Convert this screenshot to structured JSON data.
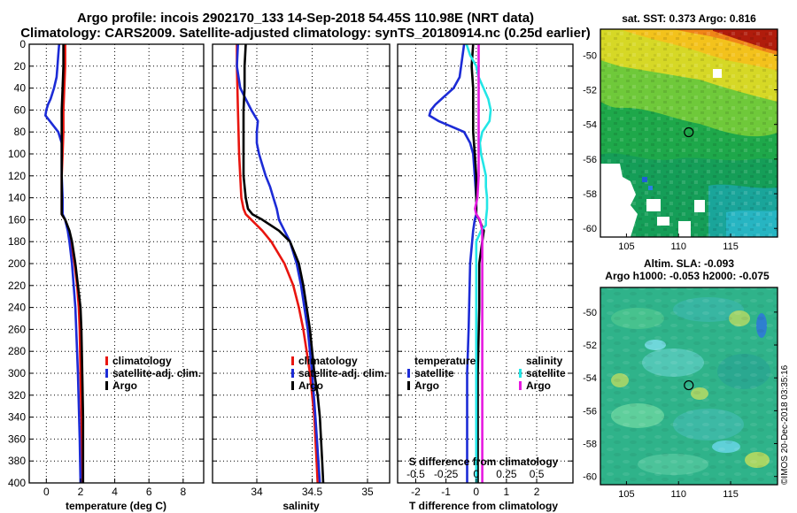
{
  "header": {
    "line1": "Argo profile: incois 2902170_133 14-Sep-2018 54.45S 110.98E (NRT data)",
    "line2": "Climatology: CARS2009. Satellite-adjusted climatology: synTS_20180914.nc (0.25d earlier)"
  },
  "depth_axis": {
    "ticks": [
      0,
      20,
      40,
      60,
      80,
      100,
      120,
      140,
      160,
      180,
      200,
      220,
      240,
      260,
      280,
      300,
      320,
      340,
      360,
      380,
      400
    ],
    "range": [
      0,
      400
    ]
  },
  "colors": {
    "climatology": "#e8150f",
    "satellite": "#1c2bd6",
    "argo": "#000000",
    "sat_salinity": "#22e6e6",
    "argo_salinity": "#e619e0"
  },
  "chart_data": [
    {
      "type": "line",
      "name": "temperature",
      "xlabel": "temperature (deg C)",
      "ylabel": "depth",
      "xlim": [
        -1,
        9.2
      ],
      "ylim": [
        400,
        0
      ],
      "xticks": [
        0,
        2,
        4,
        6,
        8
      ],
      "grid": true,
      "legend_position": "bottom-right",
      "legend": [
        "climatology",
        "satellite-adj. clim.",
        "Argo"
      ],
      "series": [
        {
          "name": "climatology",
          "depth": [
            0,
            20,
            40,
            60,
            80,
            100,
            120,
            140,
            155,
            160,
            170,
            180,
            200,
            220,
            240,
            260,
            300,
            340,
            400
          ],
          "values": [
            1.1,
            1.1,
            1.05,
            1.0,
            1.0,
            0.95,
            0.9,
            0.9,
            0.9,
            1.1,
            1.3,
            1.45,
            1.65,
            1.8,
            1.9,
            1.95,
            2.0,
            2.05,
            2.1
          ]
        },
        {
          "name": "satellite-adj. clim.",
          "depth": [
            0,
            10,
            20,
            30,
            40,
            50,
            55,
            60,
            65,
            70,
            80,
            90,
            100,
            120,
            140,
            155,
            160,
            170,
            180,
            200,
            240,
            300,
            360,
            400
          ],
          "values": [
            0.75,
            0.7,
            0.65,
            0.6,
            0.45,
            0.25,
            0.1,
            0.0,
            -0.05,
            0.2,
            0.7,
            0.9,
            0.9,
            0.9,
            0.95,
            0.95,
            1.1,
            1.25,
            1.35,
            1.5,
            1.7,
            1.85,
            1.95,
            2.0
          ]
        },
        {
          "name": "Argo",
          "depth": [
            0,
            20,
            40,
            60,
            80,
            100,
            120,
            140,
            155,
            160,
            170,
            180,
            190,
            200,
            220,
            240,
            260,
            300,
            340,
            380,
            400
          ],
          "values": [
            1.0,
            1.0,
            0.95,
            0.9,
            0.9,
            0.9,
            0.9,
            0.9,
            0.9,
            1.1,
            1.35,
            1.5,
            1.6,
            1.7,
            1.85,
            2.0,
            2.05,
            2.1,
            2.15,
            2.15,
            2.15
          ]
        }
      ]
    },
    {
      "type": "line",
      "name": "salinity",
      "xlabel": "salinity",
      "ylabel": "depth",
      "xlim": [
        33.6,
        35.2
      ],
      "ylim": [
        400,
        0
      ],
      "xticks": [
        34,
        34.5,
        35
      ],
      "grid": true,
      "legend_position": "bottom-right",
      "legend": [
        "climatology",
        "satellite-adj. clim.",
        "Argo"
      ],
      "series": [
        {
          "name": "climatology",
          "depth": [
            0,
            20,
            60,
            100,
            140,
            150,
            155,
            160,
            170,
            180,
            200,
            220,
            240,
            260,
            280,
            300,
            320,
            340,
            360,
            380,
            400
          ],
          "values": [
            33.82,
            33.82,
            33.83,
            33.84,
            33.86,
            33.88,
            33.9,
            33.95,
            34.05,
            34.13,
            34.25,
            34.33,
            34.38,
            34.42,
            34.45,
            34.48,
            34.5,
            34.52,
            34.53,
            34.54,
            34.55
          ]
        },
        {
          "name": "satellite-adj. clim.",
          "depth": [
            0,
            20,
            40,
            50,
            60,
            70,
            80,
            90,
            100,
            110,
            120,
            130,
            140,
            150,
            160,
            170,
            180,
            200,
            220,
            240,
            260,
            280,
            300,
            340,
            400
          ],
          "values": [
            33.83,
            33.82,
            33.85,
            33.9,
            33.95,
            34.01,
            34.0,
            34.0,
            34.02,
            34.05,
            34.08,
            34.12,
            34.15,
            34.18,
            34.2,
            34.25,
            34.3,
            34.36,
            34.4,
            34.43,
            34.46,
            34.48,
            34.5,
            34.53,
            34.57
          ]
        },
        {
          "name": "Argo",
          "depth": [
            0,
            20,
            40,
            60,
            80,
            100,
            120,
            140,
            150,
            155,
            160,
            170,
            180,
            200,
            220,
            240,
            260,
            280,
            300,
            320,
            340,
            360,
            380,
            400
          ],
          "values": [
            33.9,
            33.89,
            33.89,
            33.88,
            33.88,
            33.88,
            33.88,
            33.9,
            33.92,
            33.96,
            34.05,
            34.2,
            34.3,
            34.38,
            34.42,
            34.45,
            34.48,
            34.5,
            34.52,
            34.55,
            34.57,
            34.58,
            34.59,
            34.6
          ]
        }
      ]
    },
    {
      "type": "line",
      "name": "difference from climatology",
      "xlabel": "T difference from climatology",
      "xlabel_top": "S difference from climatology",
      "ylabel": "depth",
      "xlim": [
        -2.6,
        3.2
      ],
      "ylim": [
        400,
        0
      ],
      "xticks": [
        -2,
        -1,
        0,
        1,
        2
      ],
      "xticks_top": [
        -0.5,
        -0.25,
        0,
        0.25,
        0.5
      ],
      "xticklabels_top": [
        "-0.5",
        "-0.25",
        "0",
        "0.25",
        "0.5"
      ],
      "grid": true,
      "legend_position": "bottom",
      "legend_temperature": {
        "heading": "temperature",
        "items": [
          "satellite",
          "Argo"
        ]
      },
      "legend_salinity": {
        "heading": "salinity",
        "items": [
          "satellite",
          "Argo"
        ]
      },
      "series": [
        {
          "name": "temperature satellite",
          "depth": [
            0,
            10,
            20,
            30,
            40,
            50,
            55,
            60,
            65,
            70,
            80,
            90,
            100,
            120,
            140,
            155,
            160,
            170,
            200,
            260,
            300,
            400
          ],
          "values": [
            -0.4,
            -0.45,
            -0.5,
            -0.55,
            -0.75,
            -1.15,
            -1.35,
            -1.5,
            -1.55,
            -1.25,
            -0.4,
            -0.2,
            -0.1,
            -0.05,
            0.0,
            0.0,
            -0.05,
            -0.1,
            -0.2,
            -0.25,
            -0.3,
            -0.3
          ]
        },
        {
          "name": "temperature Argo",
          "depth": [
            0,
            20,
            40,
            60,
            80,
            100,
            120,
            140,
            155,
            160,
            170,
            180,
            200,
            240,
            300,
            400
          ],
          "values": [
            -0.1,
            -0.15,
            -0.1,
            -0.1,
            -0.1,
            -0.05,
            0.0,
            0.0,
            0.0,
            0.1,
            0.25,
            0.2,
            0.1,
            0.1,
            0.05,
            0.05
          ]
        },
        {
          "name": "salinity satellite",
          "depth": [
            0,
            10,
            20,
            30,
            40,
            50,
            60,
            70,
            80,
            90,
            100,
            110,
            120,
            130,
            140,
            150,
            160,
            165,
            170,
            180,
            200,
            240,
            300,
            400
          ],
          "values": [
            -0.08,
            -0.05,
            0.0,
            0.02,
            0.06,
            0.1,
            0.12,
            0.11,
            0.05,
            0.03,
            0.04,
            0.06,
            0.08,
            0.08,
            0.09,
            0.09,
            0.08,
            0.08,
            0.04,
            0.0,
            0.0,
            0.0,
            0.0,
            0.0
          ]
        },
        {
          "name": "salinity Argo",
          "depth": [
            0,
            20,
            40,
            60,
            80,
            100,
            120,
            140,
            150,
            155,
            160,
            170,
            180,
            200,
            240,
            300,
            400
          ],
          "values": [
            0.02,
            0.02,
            0.02,
            0.02,
            0.02,
            0.02,
            0.02,
            0.01,
            -0.01,
            0.0,
            0.03,
            0.05,
            0.05,
            0.05,
            0.05,
            0.05,
            0.05
          ]
        }
      ]
    },
    {
      "type": "heatmap",
      "name": "sat-sst-map",
      "title": "sat. SST: 0.373 Argo: 0.816",
      "lon_range": [
        102.5,
        119.5
      ],
      "lat_range": [
        -60.5,
        -48.5
      ],
      "xticks": [
        105,
        110,
        115
      ],
      "yticks": [
        -50,
        -52,
        -54,
        -56,
        -58,
        -60
      ],
      "argo_marker": {
        "lon": 110.98,
        "lat": -54.45
      }
    },
    {
      "type": "heatmap",
      "name": "altimetry-sla-map",
      "title_line1": "Altim. SLA: -0.093",
      "title_line2": "Argo h1000: -0.053 h2000: -0.075",
      "lon_range": [
        102.5,
        119.5
      ],
      "lat_range": [
        -60.5,
        -48.5
      ],
      "xticks": [
        105,
        110,
        115
      ],
      "yticks": [
        -50,
        -52,
        -54,
        -56,
        -58,
        -60
      ],
      "argo_marker": {
        "lon": 110.98,
        "lat": -54.45
      }
    }
  ],
  "footer": {
    "copyright": "©IMOS 20-Dec-2018 03:35:16"
  }
}
